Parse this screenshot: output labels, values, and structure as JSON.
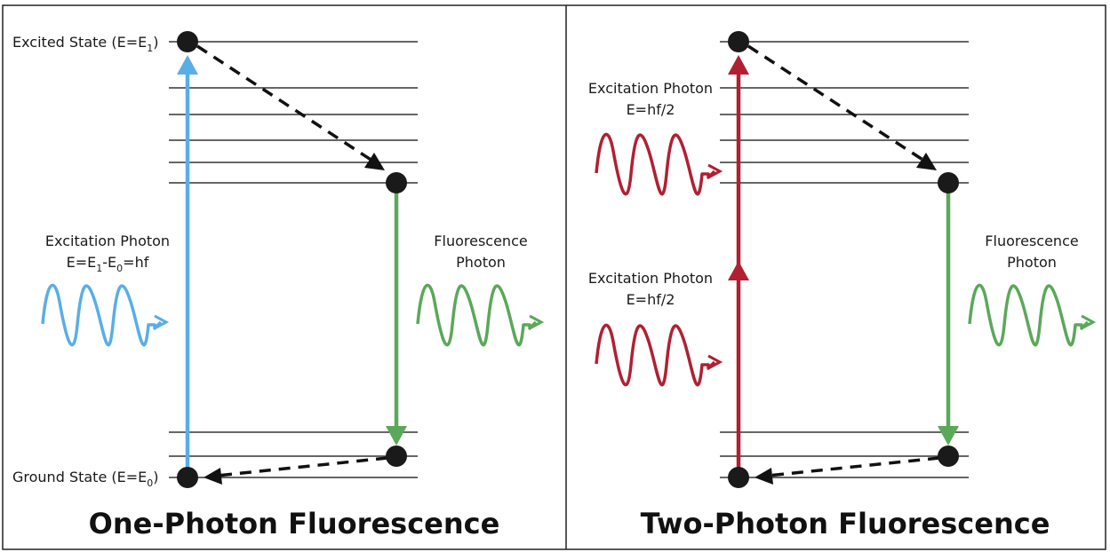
{
  "colors": {
    "blue": "#5aaee6",
    "green": "#5aa85a",
    "red": "#b02032",
    "black": "#111111",
    "level_line": "#333333"
  },
  "left_panel": {
    "title": "One-Photon Fluorescence",
    "excited_state": {
      "prefix": "Excited State (E=E",
      "sub": "1",
      "suffix": ")"
    },
    "ground_state": {
      "prefix": "Ground State (E=E",
      "sub": "0",
      "suffix": ")"
    },
    "excitation": {
      "line1": "Excitation Photon",
      "l2_a": "E=E",
      "l2_sub1": "1",
      "l2_b": "-E",
      "l2_sub2": "0",
      "l2_c": "=hf"
    },
    "fluorescence": {
      "line1": "Fluorescence",
      "line2": "Photon"
    }
  },
  "right_panel": {
    "title": "Two-Photon Fluorescence",
    "excitation_upper": {
      "line1": "Excitation Photon",
      "line2": "E=hf/2"
    },
    "excitation_lower": {
      "line1": "Excitation Photon",
      "line2": "E=hf/2"
    },
    "fluorescence": {
      "line1": "Fluorescence",
      "line2": "Photon"
    }
  }
}
